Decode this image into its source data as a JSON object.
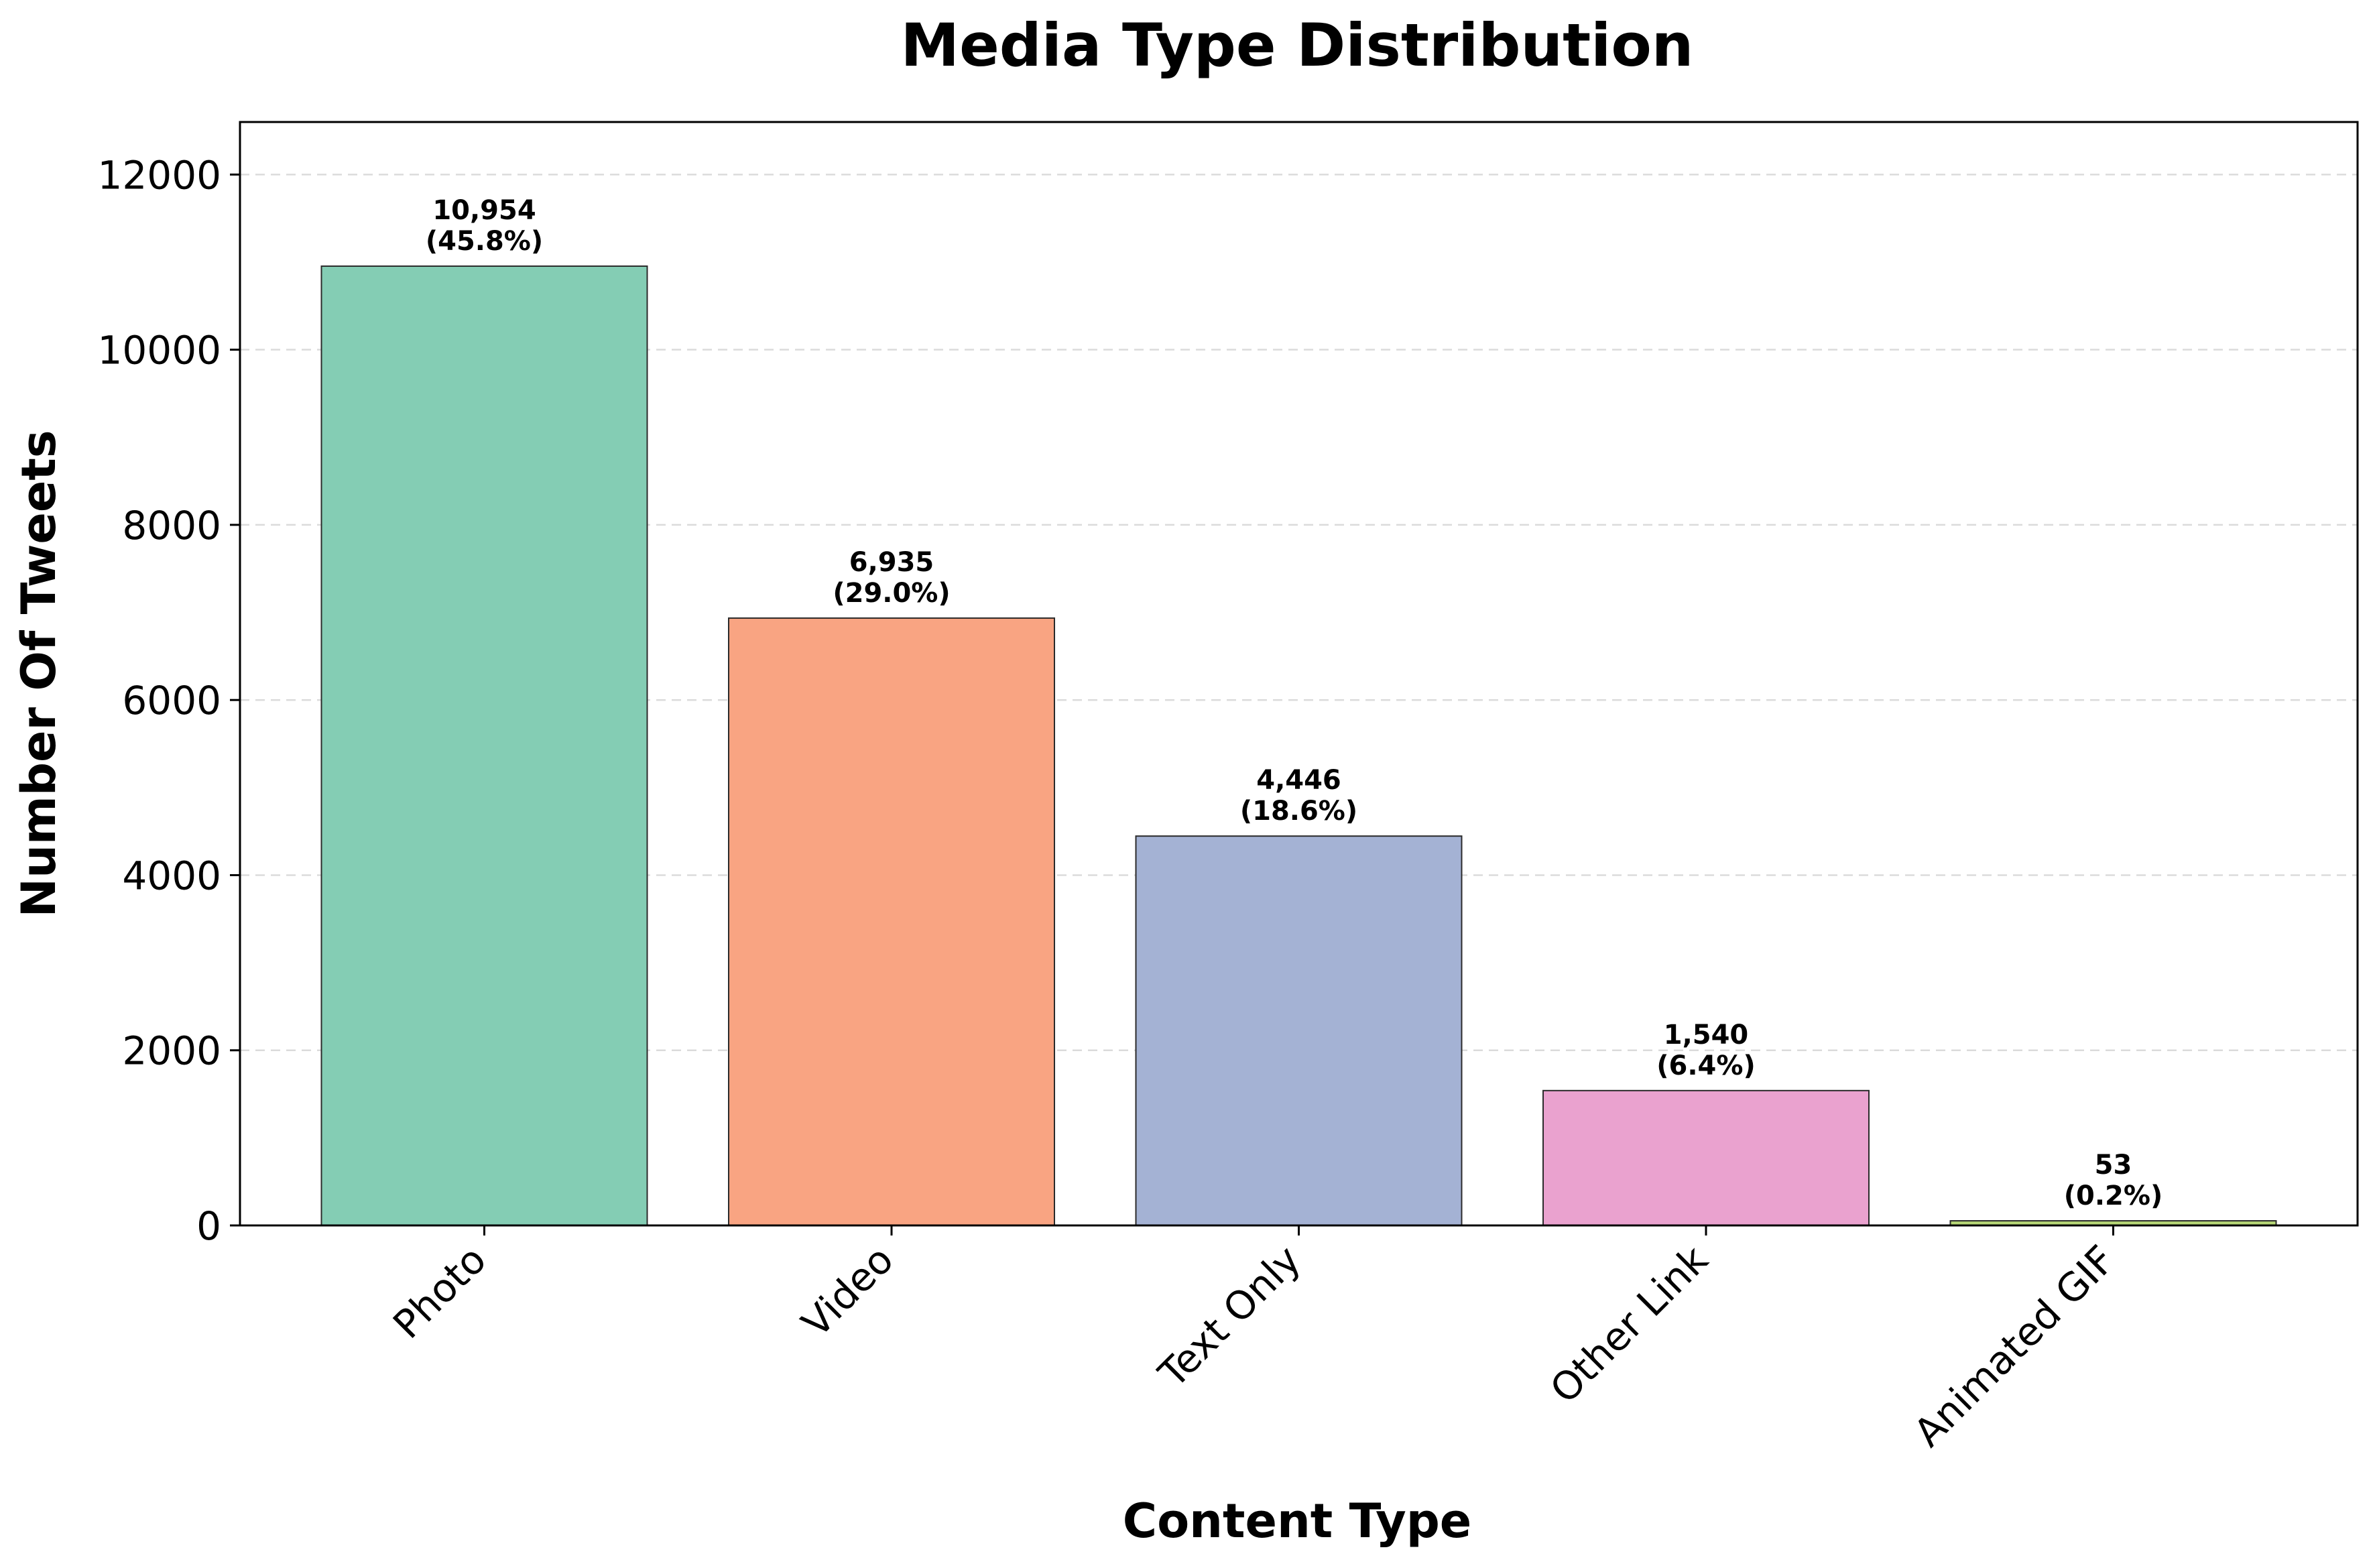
{
  "chart_data": {
    "type": "bar",
    "title": "Media Type Distribution",
    "xlabel": "Content Type",
    "ylabel": "Number Of Tweets",
    "categories": [
      "Photo",
      "Video",
      "Text Only",
      "Other Link",
      "Animated GIF"
    ],
    "values": [
      10954,
      6935,
      4446,
      1540,
      53
    ],
    "value_labels": [
      "10,954",
      "6,935",
      "4,446",
      "1,540",
      "53"
    ],
    "percent_labels": [
      "(45.8%)",
      "(29.0%)",
      "(18.6%)",
      "(6.4%)",
      "(0.2%)"
    ],
    "colors": [
      "#84cdb4",
      "#f9a482",
      "#a4b2d4",
      "#eaa2cf",
      "#b6d676"
    ],
    "ylim": [
      0,
      12600
    ],
    "yticks": [
      0,
      2000,
      4000,
      6000,
      8000,
      10000,
      12000
    ],
    "ytick_labels": [
      "0",
      "2000",
      "4000",
      "6000",
      "8000",
      "10000",
      "12000"
    ],
    "grid": "y-dashed",
    "legend": "none"
  }
}
